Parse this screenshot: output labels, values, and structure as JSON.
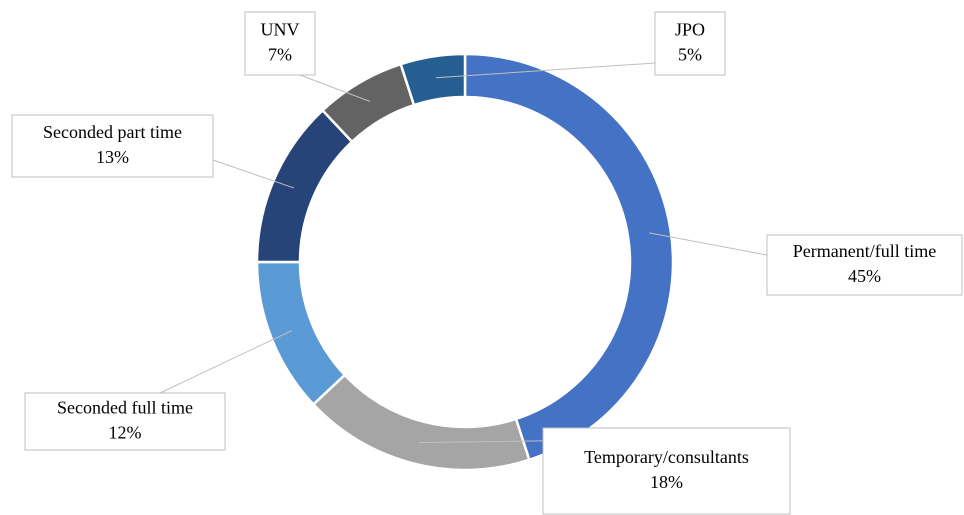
{
  "chart_data": {
    "type": "donut",
    "categories": [
      "Permanent/full time",
      "Temporary/consultants",
      "Seconded full time",
      "Seconded part time",
      "UNV",
      "JPO"
    ],
    "values": [
      45,
      18,
      12,
      13,
      7,
      5
    ],
    "value_labels": [
      "45%",
      "18%",
      "12%",
      "13%",
      "7%",
      "5%"
    ],
    "colors": [
      "#4472c4",
      "#a5a5a5",
      "#5b9bd5",
      "#264478",
      "#636363",
      "#255e91"
    ]
  }
}
